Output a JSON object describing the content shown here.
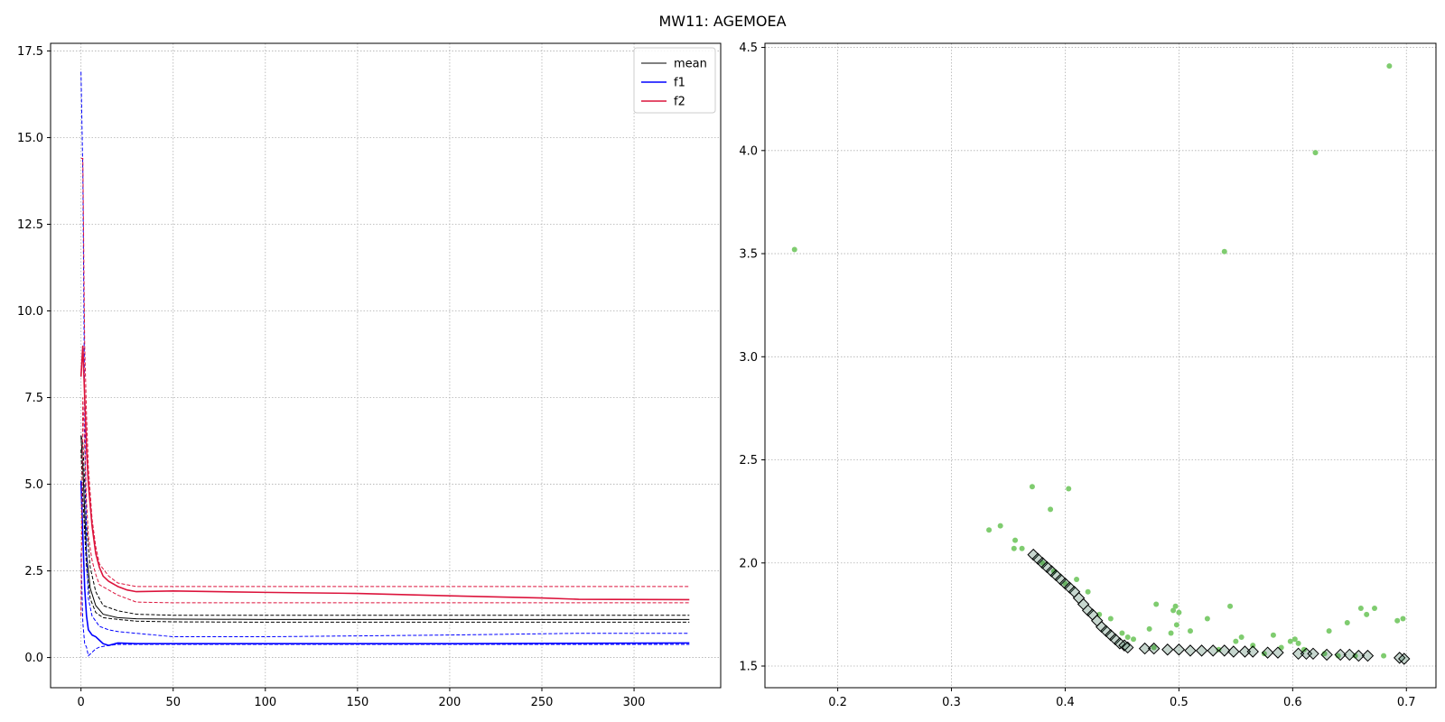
{
  "title": "MW11: AGEMOEA",
  "chart_data": [
    {
      "type": "line",
      "title": "",
      "xlabel": "",
      "ylabel": "",
      "xlim": [
        -16.5,
        347
      ],
      "ylim": [
        -0.87,
        17.72
      ],
      "xticks": [
        0,
        50,
        100,
        150,
        200,
        250,
        300
      ],
      "yticks": [
        0.0,
        2.5,
        5.0,
        7.5,
        10.0,
        12.5,
        15.0,
        17.5
      ],
      "xtick_labels": [
        "0",
        "50",
        "100",
        "150",
        "200",
        "250",
        "300"
      ],
      "ytick_labels": [
        "0.0",
        "2.5",
        "5.0",
        "7.5",
        "10.0",
        "12.5",
        "15.0",
        "17.5"
      ],
      "grid": true,
      "legend": {
        "position": "top-right",
        "entries": [
          "mean",
          "f1",
          "f2"
        ]
      },
      "series": [
        {
          "name": "mean",
          "color": "#000000",
          "style": "solid",
          "x": [
            0,
            1,
            2,
            3,
            5,
            8,
            12,
            20,
            30,
            50,
            100,
            200,
            330
          ],
          "y": [
            6.4,
            5.5,
            4.2,
            3.0,
            2.0,
            1.5,
            1.25,
            1.15,
            1.12,
            1.11,
            1.1,
            1.1,
            1.1
          ]
        },
        {
          "name": "mean upper",
          "color": "#000000",
          "style": "dashed",
          "x": [
            0,
            1,
            2,
            3,
            5,
            8,
            12,
            20,
            30,
            50,
            100,
            200,
            330
          ],
          "y": [
            6.4,
            6.2,
            5.0,
            3.8,
            2.6,
            1.9,
            1.5,
            1.35,
            1.25,
            1.22,
            1.22,
            1.22,
            1.22
          ]
        },
        {
          "name": "mean lower",
          "color": "#000000",
          "style": "dashed",
          "x": [
            0,
            1,
            2,
            3,
            5,
            8,
            12,
            20,
            30,
            50,
            100,
            200,
            330
          ],
          "y": [
            6.0,
            4.6,
            3.6,
            2.6,
            1.7,
            1.3,
            1.15,
            1.1,
            1.05,
            1.03,
            1.02,
            1.02,
            1.02
          ]
        },
        {
          "name": "f1",
          "color": "#0000ff",
          "style": "solid",
          "x": [
            0,
            1,
            2,
            3,
            4,
            6,
            8,
            10,
            12,
            15,
            20,
            30,
            50,
            100,
            200,
            330
          ],
          "y": [
            5.1,
            3.5,
            2.0,
            1.2,
            0.8,
            0.65,
            0.6,
            0.5,
            0.4,
            0.35,
            0.42,
            0.4,
            0.4,
            0.4,
            0.4,
            0.42
          ]
        },
        {
          "name": "f1 upper",
          "color": "#0000ff",
          "style": "dashed",
          "x": [
            0,
            1,
            2,
            3,
            4,
            6,
            10,
            15,
            20,
            30,
            50,
            100,
            200,
            270,
            330
          ],
          "y": [
            16.9,
            14.0,
            7.0,
            3.0,
            1.7,
            1.2,
            0.9,
            0.8,
            0.75,
            0.7,
            0.6,
            0.6,
            0.65,
            0.7,
            0.7
          ]
        },
        {
          "name": "f1 lower",
          "color": "#0000ff",
          "style": "dashed",
          "x": [
            0,
            1,
            2,
            3,
            4,
            6,
            8,
            10,
            15,
            20,
            30,
            50,
            100,
            200,
            330
          ],
          "y": [
            3.0,
            1.0,
            0.4,
            0.3,
            0.05,
            0.15,
            0.25,
            0.3,
            0.35,
            0.38,
            0.38,
            0.38,
            0.38,
            0.38,
            0.38
          ]
        },
        {
          "name": "f2",
          "color": "#dc143c",
          "style": "solid",
          "x": [
            0,
            1,
            2,
            3,
            4,
            6,
            8,
            10,
            12,
            15,
            20,
            25,
            30,
            50,
            100,
            150,
            200,
            250,
            270,
            330
          ],
          "y": [
            8.1,
            9.0,
            7.5,
            6.0,
            5.0,
            3.8,
            3.0,
            2.6,
            2.35,
            2.2,
            2.05,
            1.95,
            1.9,
            1.92,
            1.88,
            1.85,
            1.78,
            1.72,
            1.68,
            1.67
          ]
        },
        {
          "name": "f2 upper",
          "color": "#dc143c",
          "style": "dashed",
          "x": [
            0,
            1,
            2,
            3,
            4,
            6,
            8,
            10,
            15,
            20,
            30,
            50,
            100,
            200,
            330
          ],
          "y": [
            14.4,
            14.4,
            9.0,
            7.0,
            5.5,
            4.0,
            3.2,
            2.7,
            2.35,
            2.15,
            2.05,
            2.05,
            2.05,
            2.05,
            2.05
          ]
        },
        {
          "name": "f2 lower",
          "color": "#dc143c",
          "style": "dashed",
          "x": [
            0,
            1,
            2,
            3,
            4,
            6,
            8,
            10,
            15,
            20,
            30,
            50,
            100,
            200,
            330
          ],
          "y": [
            1.2,
            7.5,
            6.0,
            4.5,
            3.5,
            2.8,
            2.4,
            2.1,
            1.95,
            1.8,
            1.6,
            1.58,
            1.58,
            1.58,
            1.58
          ]
        }
      ]
    },
    {
      "type": "scatter",
      "title": "",
      "xlabel": "",
      "ylabel": "",
      "xlim": [
        0.136,
        0.726
      ],
      "ylim": [
        1.395,
        4.52
      ],
      "xticks": [
        0.2,
        0.3,
        0.4,
        0.5,
        0.6,
        0.7
      ],
      "yticks": [
        1.5,
        2.0,
        2.5,
        3.0,
        3.5,
        4.0,
        4.5
      ],
      "xtick_labels": [
        "0.2",
        "0.3",
        "0.4",
        "0.5",
        "0.6",
        "0.7"
      ],
      "ytick_labels": [
        "1.5",
        "2.0",
        "2.5",
        "3.0",
        "3.5",
        "4.0",
        "4.5"
      ],
      "grid": true,
      "series": [
        {
          "name": "population",
          "color": "#7fcc6f",
          "marker": "circle",
          "points": [
            [
              0.162,
              3.52
            ],
            [
              0.685,
              4.41
            ],
            [
              0.62,
              3.99
            ],
            [
              0.54,
              3.51
            ],
            [
              0.371,
              2.37
            ],
            [
              0.403,
              2.36
            ],
            [
              0.387,
              2.26
            ],
            [
              0.343,
              2.18
            ],
            [
              0.333,
              2.16
            ],
            [
              0.356,
              2.11
            ],
            [
              0.355,
              2.07
            ],
            [
              0.362,
              2.07
            ],
            [
              0.41,
              1.92
            ],
            [
              0.42,
              1.86
            ],
            [
              0.38,
              2.0
            ],
            [
              0.39,
              1.96
            ],
            [
              0.4,
              1.9
            ],
            [
              0.43,
              1.75
            ],
            [
              0.44,
              1.73
            ],
            [
              0.45,
              1.66
            ],
            [
              0.455,
              1.64
            ],
            [
              0.46,
              1.63
            ],
            [
              0.48,
              1.8
            ],
            [
              0.495,
              1.77
            ],
            [
              0.5,
              1.76
            ],
            [
              0.497,
              1.79
            ],
            [
              0.493,
              1.66
            ],
            [
              0.498,
              1.7
            ],
            [
              0.51,
              1.67
            ],
            [
              0.525,
              1.73
            ],
            [
              0.545,
              1.79
            ],
            [
              0.55,
              1.62
            ],
            [
              0.555,
              1.64
            ],
            [
              0.565,
              1.6
            ],
            [
              0.583,
              1.65
            ],
            [
              0.59,
              1.59
            ],
            [
              0.598,
              1.62
            ],
            [
              0.602,
              1.63
            ],
            [
              0.605,
              1.61
            ],
            [
              0.632,
              1.67
            ],
            [
              0.648,
              1.71
            ],
            [
              0.66,
              1.78
            ],
            [
              0.665,
              1.75
            ],
            [
              0.672,
              1.78
            ],
            [
              0.692,
              1.72
            ],
            [
              0.697,
              1.73
            ],
            [
              0.474,
              1.68
            ],
            [
              0.478,
              1.59
            ],
            [
              0.535,
              1.58
            ],
            [
              0.575,
              1.56
            ],
            [
              0.61,
              1.58
            ],
            [
              0.628,
              1.56
            ],
            [
              0.64,
              1.55
            ],
            [
              0.655,
              1.55
            ],
            [
              0.68,
              1.55
            ]
          ]
        },
        {
          "name": "front",
          "color": "#000000",
          "marker": "diamond",
          "points": [
            [
              0.372,
              2.04
            ],
            [
              0.376,
              2.02
            ],
            [
              0.38,
              2.0
            ],
            [
              0.384,
              1.98
            ],
            [
              0.388,
              1.96
            ],
            [
              0.392,
              1.94
            ],
            [
              0.396,
              1.92
            ],
            [
              0.4,
              1.9
            ],
            [
              0.404,
              1.88
            ],
            [
              0.408,
              1.86
            ],
            [
              0.412,
              1.83
            ],
            [
              0.416,
              1.8
            ],
            [
              0.42,
              1.77
            ],
            [
              0.424,
              1.75
            ],
            [
              0.428,
              1.72
            ],
            [
              0.432,
              1.69
            ],
            [
              0.436,
              1.67
            ],
            [
              0.44,
              1.65
            ],
            [
              0.444,
              1.63
            ],
            [
              0.448,
              1.61
            ],
            [
              0.452,
              1.6
            ],
            [
              0.455,
              1.59
            ],
            [
              0.47,
              1.585
            ],
            [
              0.478,
              1.585
            ],
            [
              0.49,
              1.58
            ],
            [
              0.5,
              1.58
            ],
            [
              0.51,
              1.575
            ],
            [
              0.52,
              1.575
            ],
            [
              0.53,
              1.575
            ],
            [
              0.54,
              1.575
            ],
            [
              0.548,
              1.57
            ],
            [
              0.558,
              1.57
            ],
            [
              0.565,
              1.57
            ],
            [
              0.578,
              1.565
            ],
            [
              0.587,
              1.565
            ],
            [
              0.605,
              1.56
            ],
            [
              0.612,
              1.56
            ],
            [
              0.618,
              1.56
            ],
            [
              0.63,
              1.555
            ],
            [
              0.642,
              1.555
            ],
            [
              0.65,
              1.555
            ],
            [
              0.658,
              1.55
            ],
            [
              0.666,
              1.55
            ],
            [
              0.694,
              1.54
            ],
            [
              0.698,
              1.535
            ]
          ]
        }
      ]
    }
  ]
}
